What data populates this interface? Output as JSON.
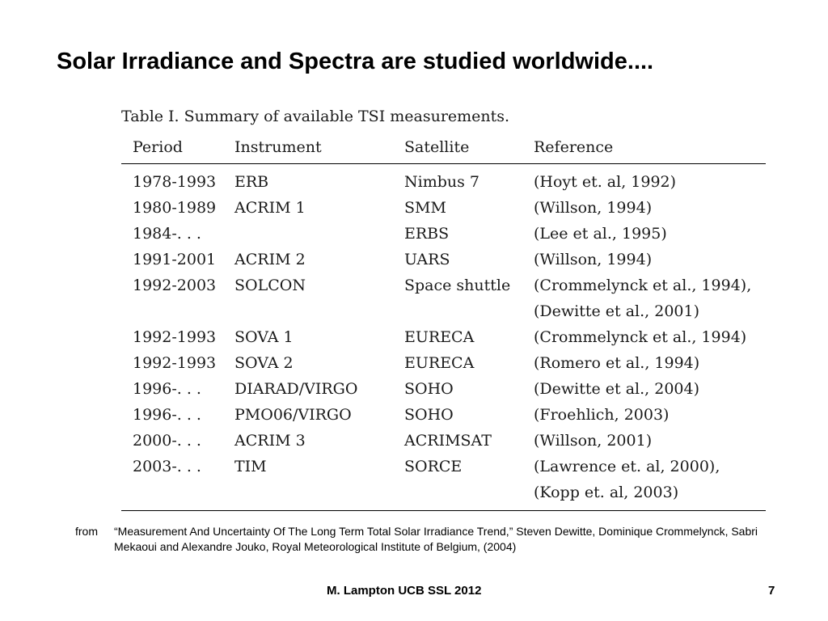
{
  "title": "Solar Irradiance and Spectra are studied worldwide....",
  "table": {
    "caption": "Table I.  Summary of available TSI measurements.",
    "headers": [
      "Period",
      "Instrument",
      "Satellite",
      "Reference"
    ],
    "rows": [
      [
        "1978-1993",
        "ERB",
        "Nimbus 7",
        "(Hoyt et. al, 1992)"
      ],
      [
        "1980-1989",
        "ACRIM 1",
        "SMM",
        "(Willson, 1994)"
      ],
      [
        "1984-. . .",
        "",
        "ERBS",
        "(Lee et al., 1995)"
      ],
      [
        "1991-2001",
        "ACRIM 2",
        "UARS",
        "(Willson, 1994)"
      ],
      [
        "1992-2003",
        "SOLCON",
        "Space shuttle",
        "(Crommelynck et al., 1994),"
      ],
      [
        "",
        "",
        "",
        "(Dewitte et al., 2001)"
      ],
      [
        "1992-1993",
        "SOVA 1",
        "EURECA",
        "(Crommelynck et al., 1994)"
      ],
      [
        "1992-1993",
        "SOVA 2",
        "EURECA",
        "(Romero et al., 1994)"
      ],
      [
        "1996-. . .",
        "DIARAD/VIRGO",
        "SOHO",
        "(Dewitte et al., 2004)"
      ],
      [
        "1996-. . .",
        "PMO06/VIRGO",
        "SOHO",
        "(Froehlich, 2003)"
      ],
      [
        "2000-. . .",
        "ACRIM 3",
        "ACRIMSAT",
        "(Willson, 2001)"
      ],
      [
        "2003-. . .",
        "TIM",
        "SORCE",
        "(Lawrence et. al, 2000),"
      ],
      [
        "",
        "",
        "",
        "(Kopp et. al, 2003)"
      ]
    ]
  },
  "source": {
    "prefix": "from",
    "citation": "“Measurement And Uncertainty Of The Long Term Total Solar Irradiance Trend,”  Steven Dewitte, Dominique Crommelynck, Sabri Mekaoui and Alexandre Jouko,  Royal Meteorological Institute of Belgium, (2004)"
  },
  "footer": {
    "author": "M. Lampton UCB SSL 2012",
    "page": "7"
  }
}
